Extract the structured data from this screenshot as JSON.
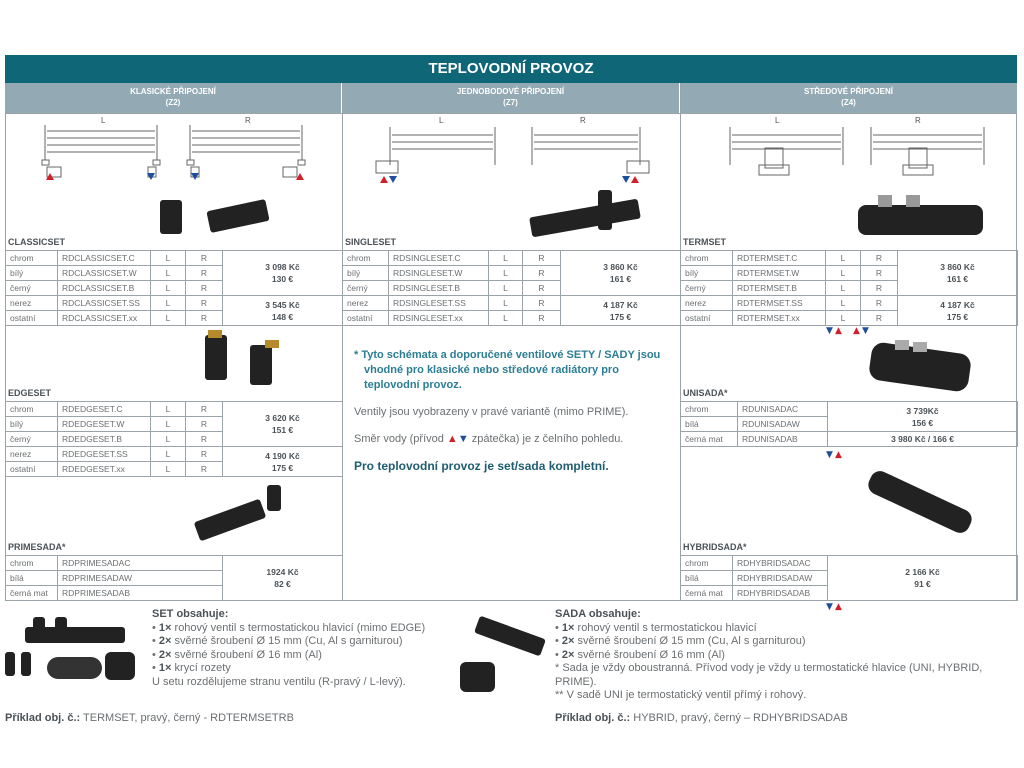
{
  "title": "TEPLOVODNÍ PROVOZ",
  "columns": [
    {
      "name": "KLASICKÉ PŘIPOJENÍ",
      "code": "(Z2)"
    },
    {
      "name": "JEDNOBODOVÉ PŘIPOJENÍ",
      "code": "(Z7)"
    },
    {
      "name": "STŘEDOVÉ PŘIPOJENÍ",
      "code": "(Z4)"
    }
  ],
  "diagram_labels": {
    "left": "L",
    "right": "R"
  },
  "colors": {
    "header": "#0f6677",
    "subheader": "#93aab4",
    "supply": "#d0202a",
    "return": "#1e4f9c"
  },
  "sections": {
    "classicset": {
      "label": "CLASSICSET",
      "rows": [
        [
          "chrom",
          "RDCLASSICSET.C",
          "L",
          "R"
        ],
        [
          "bílý",
          "RDCLASSICSET.W",
          "L",
          "R"
        ],
        [
          "černý",
          "RDCLASSICSET.B",
          "L",
          "R"
        ],
        [
          "nerez",
          "RDCLASSICSET.SS",
          "L",
          "R"
        ],
        [
          "ostatní",
          "RDCLASSICSET.xx",
          "L",
          "R"
        ]
      ],
      "prices": [
        [
          "3 098 Kč",
          "130 €"
        ],
        [
          "3 545 Kč",
          "148 €"
        ]
      ]
    },
    "edgeset": {
      "label": "EDGESET",
      "rows": [
        [
          "chrom",
          "RDEDGESET.C",
          "L",
          "R"
        ],
        [
          "bílý",
          "RDEDGESET.W",
          "L",
          "R"
        ],
        [
          "černý",
          "RDEDGESET.B",
          "L",
          "R"
        ],
        [
          "nerez",
          "RDEDGESET.SS",
          "L",
          "R"
        ],
        [
          "ostatní",
          "RDEDGESET.xx",
          "L",
          "R"
        ]
      ],
      "prices": [
        [
          "3 620 Kč",
          "151 €"
        ],
        [
          "4 190 Kč",
          "175 €"
        ]
      ]
    },
    "singleset": {
      "label": "SINGLESET",
      "rows": [
        [
          "chrom",
          "RDSINGLESET.C",
          "L",
          "R"
        ],
        [
          "bílý",
          "RDSINGLESET.W",
          "L",
          "R"
        ],
        [
          "černý",
          "RDSINGLESET.B",
          "L",
          "R"
        ],
        [
          "nerez",
          "RDSINGLESET.SS",
          "L",
          "R"
        ],
        [
          "ostatní",
          "RDSINGLESET.xx",
          "L",
          "R"
        ]
      ],
      "prices": [
        [
          "3 860 Kč",
          "161 €"
        ],
        [
          "4 187 Kč",
          "175 €"
        ]
      ]
    },
    "termset": {
      "label": "TERMSET",
      "rows": [
        [
          "chrom",
          "RDTERMSET.C",
          "L",
          "R"
        ],
        [
          "bílý",
          "RDTERMSET.W",
          "L",
          "R"
        ],
        [
          "černý",
          "RDTERMSET.B",
          "L",
          "R"
        ],
        [
          "nerez",
          "RDTERMSET.SS",
          "L",
          "R"
        ],
        [
          "ostatní",
          "RDTERMSET.xx",
          "L",
          "R"
        ]
      ],
      "prices": [
        [
          "3 860 Kč",
          "161 €"
        ],
        [
          "4 187 Kč",
          "175 €"
        ]
      ]
    },
    "primesada": {
      "label": "PRIMESADA*",
      "rows": [
        [
          "chrom",
          "RDPRIMESADAC"
        ],
        [
          "bílá",
          "RDPRIMESADAW"
        ],
        [
          "černá mat",
          "RDPRIMESADAB"
        ]
      ],
      "price": [
        "1924 Kč",
        "82 €"
      ]
    },
    "unisada": {
      "label": "UNISADA*",
      "rows": [
        [
          "chrom",
          "RDUNISADAC"
        ],
        [
          "bílá",
          "RDUNISADAW"
        ],
        [
          "černá mat",
          "RDUNISADAB"
        ]
      ],
      "price": [
        "3 739Kč",
        "156 €"
      ],
      "price_black": "3 980 Kč / 166 €"
    },
    "hybridsada": {
      "label": "HYBRIDSADA*",
      "rows": [
        [
          "chrom",
          "RDHYBRIDSADAC"
        ],
        [
          "bílá",
          "RDHYBRIDSADAW"
        ],
        [
          "černá mat",
          "RDHYBRIDSADAB"
        ]
      ],
      "price": [
        "2 166 Kč",
        "91 €"
      ]
    }
  },
  "notes": {
    "star": "* Tyto schémata a doporučené ventilové SETY / SADY jsou vhodné pro klasické nebo středové radiátory pro teplovodní provoz.",
    "variant": "Ventily jsou vyobrazeny v pravé variantě (mimo PRIME).",
    "direction_pre": "Směr vody (přívod ",
    "direction_post": " zpátečka) je z čelního pohledu.",
    "complete": "Pro teplovodní provoz je set/sada kompletní."
  },
  "set_box": {
    "heading": "SET obsahuje:",
    "items": [
      [
        "1×",
        "rohový ventil s termostatickou hlavicí (mimo EDGE)"
      ],
      [
        "2×",
        "svěrné šroubení Ø 15 mm (Cu, Al s garniturou)"
      ],
      [
        "2×",
        "svěrné šroubení Ø 16 mm (Al)"
      ],
      [
        "1×",
        "krycí rozety"
      ]
    ],
    "footer": "U setu rozdělujeme stranu ventilu (R-pravý / L-levý).",
    "example_label": "Příklad obj. č.:",
    "example": " TERMSET, pravý, černý - RDTERMSETRB"
  },
  "sada_box": {
    "heading": "SADA obsahuje:",
    "items": [
      [
        "1×",
        "rohový ventil s termostatickou hlavicí"
      ],
      [
        "2×",
        "svěrné šroubení Ø 15 mm (Cu, Al s garniturou)"
      ],
      [
        "2×",
        "svěrné šroubení Ø 16 mm (Al)"
      ]
    ],
    "footnotes": [
      "* Sada je vždy oboustranná. Přívod vody je vždy u termostatické hlavice (UNI, HYBRID, PRIME).",
      "** V sadě UNI je termostatický ventil přímý i rohový."
    ],
    "example_label": "Příklad obj. č.:",
    "example": " HYBRID, pravý, černý – RDHYBRIDSADAB"
  }
}
